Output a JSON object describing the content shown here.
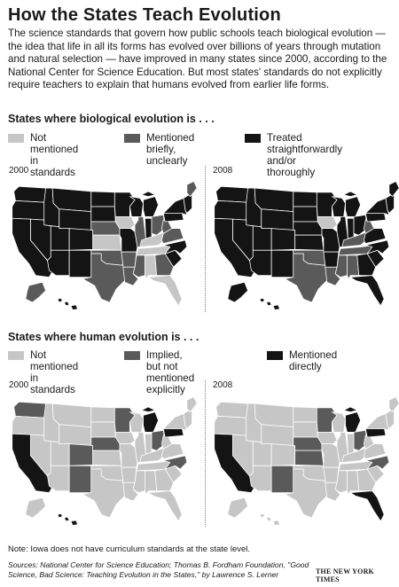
{
  "title": "How the States Teach Evolution",
  "intro": "The science standards that govern how public schools teach biological evolution — the idea that life in all its forms has evolved over billions of years through mutation and natural selection — have improved in many states since 2000, according to the National Center for Science Education. But most states' standards do not explicitly require teachers to explain that humans evolved from earlier life forms.",
  "colors": {
    "light": "#c6c6c6",
    "mid": "#5a5a5a",
    "dark": "#141414",
    "border": "#ffffff"
  },
  "biological": {
    "heading": "States where biological evolution is . . .",
    "legend": [
      {
        "key": "light",
        "label": "Not mentioned\nin standards"
      },
      {
        "key": "mid",
        "label": "Mentioned\nbriefly, unclearly"
      },
      {
        "key": "dark",
        "label": "Treated straightforwardly\nand/or thoroughly"
      }
    ],
    "maps": [
      {
        "year": "2000",
        "states": {
          "WA": "dark",
          "OR": "dark",
          "CA": "dark",
          "ID": "dark",
          "NV": "dark",
          "MT": "dark",
          "WY": "dark",
          "UT": "dark",
          "AZ": "dark",
          "CO": "dark",
          "NM": "dark",
          "ND": "dark",
          "SD": "dark",
          "NE": "mid",
          "KS": "light",
          "OK": "mid",
          "TX": "mid",
          "MN": "dark",
          "IA": "light",
          "MO": "dark",
          "AR": "mid",
          "LA": "mid",
          "WI": "dark",
          "IL": "mid",
          "MI": "dark",
          "IN": "dark",
          "OH": "mid",
          "KY": "light",
          "TN": "light",
          "MS": "mid",
          "AL": "light",
          "GA": "mid",
          "FL": "light",
          "SC": "dark",
          "NC": "dark",
          "VA": "mid",
          "WV": "mid",
          "PA": "dark",
          "NY": "dark",
          "ME": "mid",
          "NE_REGION": "dark",
          "AK": "mid",
          "HI": "dark"
        }
      },
      {
        "year": "2008",
        "states": {
          "WA": "dark",
          "OR": "dark",
          "CA": "dark",
          "ID": "dark",
          "NV": "dark",
          "MT": "dark",
          "WY": "dark",
          "UT": "dark",
          "AZ": "dark",
          "CO": "dark",
          "NM": "dark",
          "ND": "dark",
          "SD": "dark",
          "NE": "dark",
          "KS": "dark",
          "OK": "mid",
          "TX": "mid",
          "MN": "dark",
          "IA": "light",
          "MO": "dark",
          "AR": "dark",
          "LA": "mid",
          "WI": "dark",
          "IL": "dark",
          "MI": "dark",
          "IN": "dark",
          "OH": "dark",
          "KY": "mid",
          "TN": "mid",
          "MS": "mid",
          "AL": "mid",
          "GA": "dark",
          "FL": "dark",
          "SC": "dark",
          "NC": "dark",
          "VA": "dark",
          "WV": "mid",
          "PA": "dark",
          "NY": "dark",
          "ME": "dark",
          "NE_REGION": "dark",
          "AK": "dark",
          "HI": "dark"
        }
      }
    ]
  },
  "human": {
    "heading": "States where human evolution is . . .",
    "legend": [
      {
        "key": "light",
        "label": "Not mentioned\nin standards"
      },
      {
        "key": "mid",
        "label": "Implied, but not\nmentioned explicitly"
      },
      {
        "key": "dark",
        "label": "Mentioned\ndirectly"
      }
    ],
    "maps": [
      {
        "year": "2000",
        "states": {
          "WA": "mid",
          "OR": "light",
          "CA": "dark",
          "ID": "light",
          "NV": "light",
          "MT": "light",
          "WY": "light",
          "UT": "light",
          "AZ": "light",
          "CO": "mid",
          "NM": "mid",
          "ND": "light",
          "SD": "light",
          "NE": "mid",
          "KS": "light",
          "OK": "light",
          "TX": "light",
          "MN": "mid",
          "IA": "light",
          "MO": "light",
          "AR": "light",
          "LA": "light",
          "WI": "light",
          "IL": "light",
          "MI": "dark",
          "IN": "light",
          "OH": "mid",
          "KY": "light",
          "TN": "light",
          "MS": "light",
          "AL": "light",
          "GA": "light",
          "FL": "light",
          "SC": "light",
          "NC": "mid",
          "VA": "light",
          "WV": "light",
          "PA": "dark",
          "NY": "light",
          "ME": "light",
          "NE_REGION": "light",
          "AK": "light",
          "HI": "dark"
        }
      },
      {
        "year": "2008",
        "states": {
          "WA": "light",
          "OR": "light",
          "CA": "dark",
          "ID": "light",
          "NV": "light",
          "MT": "light",
          "WY": "light",
          "UT": "light",
          "AZ": "light",
          "CO": "light",
          "NM": "mid",
          "ND": "light",
          "SD": "light",
          "NE": "mid",
          "KS": "mid",
          "OK": "light",
          "TX": "light",
          "MN": "mid",
          "IA": "light",
          "MO": "light",
          "AR": "light",
          "LA": "light",
          "WI": "light",
          "IL": "light",
          "MI": "dark",
          "IN": "light",
          "OH": "mid",
          "KY": "light",
          "TN": "light",
          "MS": "light",
          "AL": "light",
          "GA": "light",
          "FL": "dark",
          "SC": "light",
          "NC": "mid",
          "VA": "light",
          "WV": "light",
          "PA": "dark",
          "NY": "light",
          "ME": "light",
          "NE_REGION": "light",
          "AK": "light",
          "HI": "light"
        }
      }
    ]
  },
  "note": "Note: Iowa does not have curriculum standards at the state level.",
  "sources": "Sources: National Center for Science Education; Thomas B. Fordham Foundation, \"Good Science, Bad Science: Teaching Evolution in the States,\" by Lawrence S. Lerner",
  "credit": "THE NEW YORK TIMES"
}
